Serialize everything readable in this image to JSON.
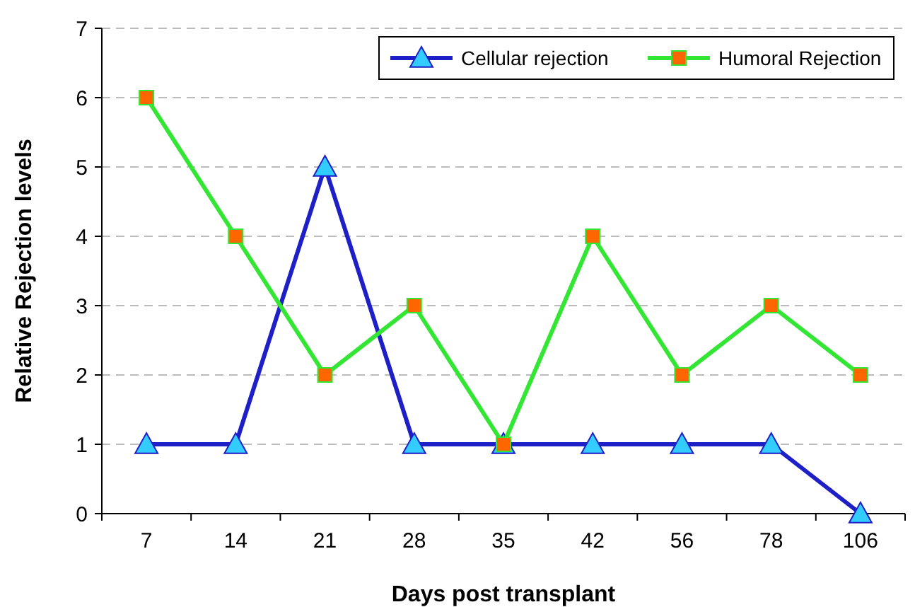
{
  "chart_data": {
    "type": "line",
    "xlabel": "Days post transplant",
    "ylabel": "Relative Rejection levels",
    "categories": [
      "7",
      "14",
      "21",
      "28",
      "35",
      "42",
      "56",
      "78",
      "106"
    ],
    "series": [
      {
        "name": "Cellular rejection",
        "color": "#1f1fc8",
        "marker": "triangle",
        "values": [
          1,
          1,
          5,
          1,
          1,
          1,
          1,
          1,
          0
        ]
      },
      {
        "name": "Humoral Rejection",
        "color": "#33e633",
        "marker": "square",
        "values": [
          6,
          4,
          2,
          3,
          1,
          4,
          2,
          3,
          2
        ]
      }
    ],
    "ylim": [
      0,
      7
    ],
    "yticks": [
      0,
      1,
      2,
      3,
      4,
      5,
      6,
      7
    ],
    "grid": "y",
    "legend": "top right",
    "line_style": "solid"
  }
}
